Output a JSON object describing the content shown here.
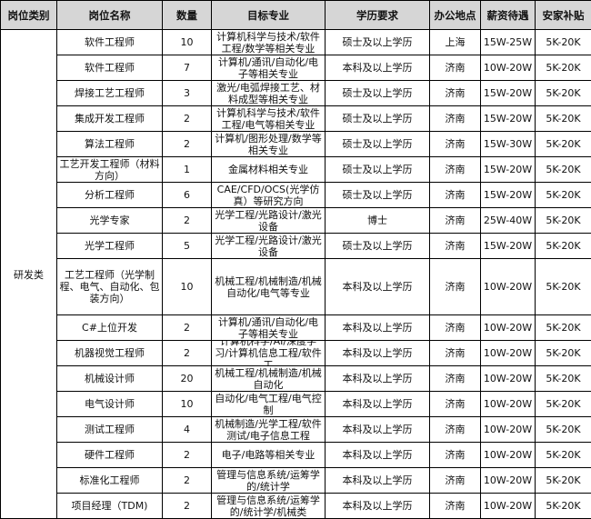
{
  "headers": [
    "岗位类别",
    "岗位名称",
    "数量",
    "目标专业",
    "学历要求",
    "办公地点",
    "薪资待遇",
    "安家补贴"
  ],
  "category": "研发类",
  "rows": [
    {
      "name": "软件工程师",
      "count": "10",
      "major": "计算机科学与技术/软件工程/数学等相关专业",
      "edu": "硕士及以上学历",
      "loc": "上海",
      "salary": "15W-25W",
      "subsidy": "5K-20K"
    },
    {
      "name": "软件工程师",
      "count": "7",
      "major": "计算机/通讯/自动化/电子等相关专业",
      "edu": "本科及以上学历",
      "loc": "济南",
      "salary": "10W-20W",
      "subsidy": "5K-20K"
    },
    {
      "name": "焊接工艺工程师",
      "count": "3",
      "major": "激光/电弧焊接工艺、材料成型等相关专业",
      "edu": "硕士及以上学历",
      "loc": "济南",
      "salary": "15W-20W",
      "subsidy": "5K-20K"
    },
    {
      "name": "集成开发工程师",
      "count": "2",
      "major": "计算机科学与技术/软件工程/电气等相关专业",
      "edu": "硕士及以上学历",
      "loc": "济南",
      "salary": "15W-20W",
      "subsidy": "5K-20K"
    },
    {
      "name": "算法工程师",
      "count": "2",
      "major": "计算机/图形处理/数学等相关专业",
      "edu": "硕士及以上学历",
      "loc": "济南",
      "salary": "15W-30W",
      "subsidy": "5K-20K"
    },
    {
      "name": "工艺开发工程师（材料方向）",
      "count": "1",
      "major": "金属材料相关专业",
      "edu": "硕士及以上学历",
      "loc": "济南",
      "salary": "15W-20W",
      "subsidy": "5K-20K"
    },
    {
      "name": "分析工程师",
      "count": "6",
      "major": "CAE/CFD/OCS(光学仿真）等研究方向",
      "edu": "硕士及以上学历",
      "loc": "济南",
      "salary": "15W-20W",
      "subsidy": "5K-20K"
    },
    {
      "name": "光学专家",
      "count": "2",
      "major": "光学工程/光路设计/激光设备",
      "edu": "博士",
      "loc": "济南",
      "salary": "25W-40W",
      "subsidy": "5K-20K"
    },
    {
      "name": "光学工程师",
      "count": "5",
      "major": "光学工程/光路设计/激光设备",
      "edu": "硕士及以上学历",
      "loc": "济南",
      "salary": "15W-20W",
      "subsidy": "5K-20K"
    },
    {
      "name": "工艺工程师（光学制程、电气、自动化、包装方向）",
      "count": "10",
      "major": "机械工程/机械制造/机械自动化/电气等专业",
      "edu": "本科及以上学历",
      "loc": "济南",
      "salary": "10W-20W",
      "subsidy": "5K-20K",
      "tall": true
    },
    {
      "name": "C#上位开发",
      "count": "2",
      "major": "计算机/通讯/自动化/电子等相关专业",
      "edu": "本科及以上学历",
      "loc": "济南",
      "salary": "10W-20W",
      "subsidy": "5K-20K"
    },
    {
      "name": "机器视觉工程师",
      "count": "2",
      "major": "计算机科学/AI/深度学习/计算机信息工程/软件工",
      "edu": "本科及以上学历",
      "loc": "济南",
      "salary": "10W-20W",
      "subsidy": "5K-20K"
    },
    {
      "name": "机械设计师",
      "count": "20",
      "major": "机械工程/机械制造/机械自动化",
      "edu": "本科及以上学历",
      "loc": "济南",
      "salary": "10W-20W",
      "subsidy": "5K-20K"
    },
    {
      "name": "电气设计师",
      "count": "10",
      "major": "自动化/电气工程/电气控制",
      "edu": "本科及以上学历",
      "loc": "济南",
      "salary": "10W-20W",
      "subsidy": "5K-20K"
    },
    {
      "name": "测试工程师",
      "count": "4",
      "major": "机械制造/光学工程/软件测试/电子信息工程",
      "edu": "本科及以上学历",
      "loc": "济南",
      "salary": "10W-20W",
      "subsidy": "5K-20K"
    },
    {
      "name": "硬件工程师",
      "count": "2",
      "major": "电子/电路等相关专业",
      "edu": "本科及以上学历",
      "loc": "济南",
      "salary": "10W-20W",
      "subsidy": "5K-20K"
    },
    {
      "name": "标准化工程师",
      "count": "2",
      "major": "管理与信息系统/运筹学的/统计学",
      "edu": "本科及以上学历",
      "loc": "济南",
      "salary": "10W-20W",
      "subsidy": "5K-20K"
    },
    {
      "name": "项目经理（TDM)",
      "count": "2",
      "major": "管理与信息系统/运筹学的/统计学/机械类",
      "edu": "本科及以上学历",
      "loc": "济南",
      "salary": "10W-20W",
      "subsidy": "5K-20K"
    }
  ]
}
